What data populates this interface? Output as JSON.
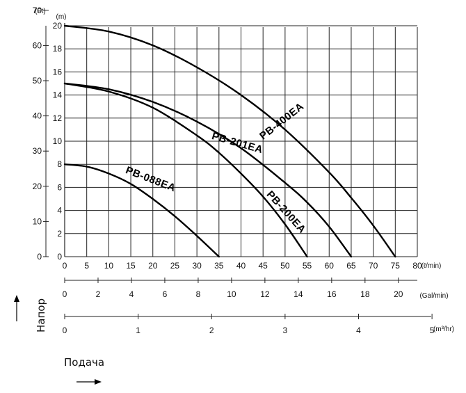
{
  "chart_data": {
    "type": "line",
    "title": "",
    "x_units": {
      "lpm_label": "(ℓ/min)",
      "gpm_label": "(Gal/min)",
      "m3h_label": "(m³/hr)"
    },
    "y_units": {
      "ft_label": "(Ft)",
      "m_label": "(m)"
    },
    "x_ticks_lpm": [
      "0",
      "5",
      "10",
      "15",
      "20",
      "25",
      "30",
      "35",
      "40",
      "45",
      "50",
      "55",
      "60",
      "65",
      "70",
      "75",
      "80"
    ],
    "x_ticks_gpm": [
      "0",
      "2",
      "4",
      "6",
      "8",
      "10",
      "12",
      "14",
      "16",
      "18",
      "20"
    ],
    "x_ticks_m3h": [
      "0",
      "1",
      "2",
      "3",
      "4",
      "5"
    ],
    "y_ticks_m": [
      "0",
      "2",
      "4",
      "6",
      "8",
      "10",
      "12",
      "14",
      "16",
      "18",
      "20"
    ],
    "y_ticks_ft": [
      "0",
      "10",
      "20",
      "30",
      "40",
      "50",
      "60",
      "70"
    ],
    "xlim_lpm": [
      0,
      80
    ],
    "ylim_m": [
      0,
      20
    ],
    "grid": true,
    "series": [
      {
        "name": "PB-400EA",
        "x": [
          0,
          10,
          20,
          30,
          40,
          50,
          60,
          65,
          70,
          75
        ],
        "y": [
          20,
          19.5,
          18.3,
          16.4,
          14.0,
          11.0,
          7.3,
          5.1,
          2.7,
          0
        ]
      },
      {
        "name": "PB-201EA",
        "x": [
          0,
          10,
          20,
          30,
          40,
          50,
          55,
          60,
          65
        ],
        "y": [
          15,
          14.5,
          13.4,
          11.7,
          9.4,
          6.4,
          4.7,
          2.6,
          0
        ]
      },
      {
        "name": "PB-200EA",
        "x": [
          0,
          10,
          20,
          30,
          35,
          40,
          45,
          50,
          55
        ],
        "y": [
          15,
          14.3,
          12.9,
          10.5,
          9.0,
          7.2,
          5.2,
          2.8,
          0
        ]
      },
      {
        "name": "PB-088EA",
        "x": [
          0,
          5,
          10,
          15,
          20,
          25,
          30,
          35
        ],
        "y": [
          8,
          7.8,
          7.2,
          6.3,
          5.0,
          3.5,
          1.8,
          0
        ]
      }
    ]
  },
  "axis_titles": {
    "head": "Напор",
    "flow": "Подача"
  }
}
